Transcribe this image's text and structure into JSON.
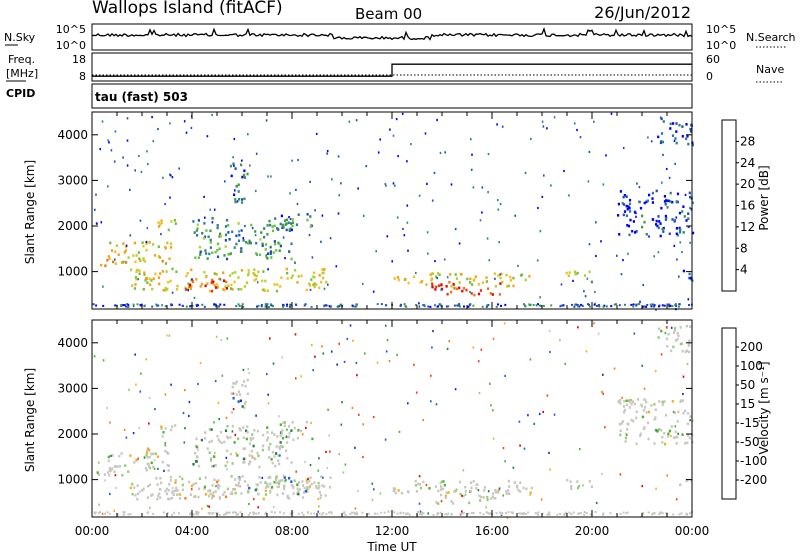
{
  "header": {
    "station": "Wallops Island (fitACF)",
    "beam": "Beam 00",
    "date": "26/Jun/2012"
  },
  "panels": {
    "noise": {
      "left_label": "N.Sky",
      "left_ticks": [
        "10^5",
        "10^0"
      ],
      "right_ticks": [
        "10^5",
        "10^0"
      ],
      "right_label": "N.Search"
    },
    "freq": {
      "label_top": "Freq.",
      "label_unit": "[MHz]",
      "cpid_label": "CPID",
      "left_ticks": [
        "18",
        "8"
      ],
      "right_ticks": [
        "60",
        "0"
      ],
      "right_label": "Nave",
      "cpid_text": "tau (fast) 503"
    }
  },
  "chart_data": [
    {
      "type": "heatmap",
      "name": "power",
      "ylabel": "Slant Range [km]",
      "colorbar_label": "Power [dB]",
      "colorbar_ticks": [
        "28",
        "24",
        "20",
        "16",
        "12",
        "8",
        "4"
      ],
      "colorbar_colors": [
        "#0000ff",
        "#1f4fb0",
        "#2e7f8c",
        "#3a9a4a",
        "#6cc23c",
        "#b0d030",
        "#f0c020",
        "#f8a010",
        "#f57010",
        "#ee3010",
        "#e60000"
      ],
      "yticks": [
        1000,
        2000,
        3000,
        4000
      ],
      "ylim": [
        180,
        4500
      ],
      "xlim_hours": [
        0,
        24
      ],
      "regions": [
        {
          "t0": 0.1,
          "t1": 1.2,
          "r0": 1100,
          "r1": 1300,
          "level": 0.65
        },
        {
          "t0": 0.6,
          "t1": 3.2,
          "r0": 1200,
          "r1": 1700,
          "level": 0.6
        },
        {
          "t0": 2.6,
          "t1": 3.4,
          "r0": 1900,
          "r1": 2250,
          "level": 0.55
        },
        {
          "t0": 1.5,
          "t1": 9.5,
          "r0": 600,
          "r1": 1100,
          "level": 0.55
        },
        {
          "t0": 3.5,
          "t1": 5.5,
          "r0": 600,
          "r1": 850,
          "level": 0.85
        },
        {
          "t0": 4.0,
          "t1": 8.0,
          "r0": 1300,
          "r1": 2200,
          "level": 0.3
        },
        {
          "t0": 5.5,
          "t1": 6.2,
          "r0": 2500,
          "r1": 3400,
          "level": 0.2
        },
        {
          "t0": 7.5,
          "t1": 8.8,
          "r0": 1900,
          "r1": 2300,
          "level": 0.25
        },
        {
          "t0": 12.0,
          "t1": 17.6,
          "r0": 700,
          "r1": 1000,
          "level": 0.55
        },
        {
          "t0": 13.5,
          "t1": 16.3,
          "r0": 500,
          "r1": 800,
          "level": 0.9
        },
        {
          "t0": 18.8,
          "t1": 20.0,
          "r0": 800,
          "r1": 1050,
          "level": 0.45
        },
        {
          "t0": 21.0,
          "t1": 24.0,
          "r0": 1800,
          "r1": 2800,
          "level": 0.12
        },
        {
          "t0": 22.6,
          "t1": 24.0,
          "r0": 3800,
          "r1": 4400,
          "level": 0.1
        },
        {
          "t0": 23.4,
          "t1": 24.0,
          "r0": 800,
          "r1": 1050,
          "level": 0.15
        }
      ]
    },
    {
      "type": "heatmap",
      "name": "velocity",
      "ylabel": "Slant Range [km]",
      "xlabel": "Time UT",
      "colorbar_label": "Velocity [m s⁻¹]",
      "colorbar_ticks": [
        "200",
        "100",
        "50",
        "15",
        "-15",
        "-50",
        "-100",
        "-200"
      ],
      "colorbar_colors": [
        "#1030c0",
        "#2060d0",
        "#208040",
        "#50b030",
        "#90d070",
        "#c8c8c0",
        "#f0b020",
        "#f88010",
        "#f04010",
        "#e00000"
      ],
      "yticks": [
        1000,
        2000,
        3000,
        4000
      ],
      "ylim": [
        180,
        4500
      ],
      "xticks": [
        "00:00",
        "04:00",
        "08:00",
        "12:00",
        "16:00",
        "20:00",
        "00:00"
      ],
      "xlim_hours": [
        0,
        24
      ],
      "regions": [
        {
          "t0": 0.1,
          "t1": 1.2,
          "r0": 1100,
          "r1": 1300,
          "level": 0.5
        },
        {
          "t0": 0.6,
          "t1": 3.2,
          "r0": 1200,
          "r1": 1700,
          "level": 0.5
        },
        {
          "t0": 2.6,
          "t1": 3.4,
          "r0": 1900,
          "r1": 2250,
          "level": 0.5
        },
        {
          "t0": 1.5,
          "t1": 9.5,
          "r0": 600,
          "r1": 1100,
          "level": 0.55
        },
        {
          "t0": 2.5,
          "t1": 5.5,
          "r0": 600,
          "r1": 850,
          "level": 0.65
        },
        {
          "t0": 5.5,
          "t1": 9.0,
          "r0": 700,
          "r1": 1100,
          "level": 0.3
        },
        {
          "t0": 4.0,
          "t1": 8.0,
          "r0": 1300,
          "r1": 2200,
          "level": 0.4
        },
        {
          "t0": 5.5,
          "t1": 6.2,
          "r0": 2500,
          "r1": 3400,
          "level": 0.1
        },
        {
          "t0": 7.5,
          "t1": 8.8,
          "r0": 1900,
          "r1": 2300,
          "level": 0.45
        },
        {
          "t0": 12.0,
          "t1": 17.6,
          "r0": 700,
          "r1": 1000,
          "level": 0.5
        },
        {
          "t0": 13.5,
          "t1": 16.3,
          "r0": 500,
          "r1": 800,
          "level": 0.5
        },
        {
          "t0": 18.8,
          "t1": 20.0,
          "r0": 800,
          "r1": 1050,
          "level": 0.5
        },
        {
          "t0": 21.0,
          "t1": 24.0,
          "r0": 1800,
          "r1": 2800,
          "level": 0.5
        },
        {
          "t0": 22.6,
          "t1": 24.0,
          "r0": 3800,
          "r1": 4400,
          "level": 0.5
        },
        {
          "t0": 23.4,
          "t1": 24.0,
          "r0": 800,
          "r1": 1050,
          "level": 0.5
        }
      ]
    }
  ],
  "frequency_series": {
    "x_hours": [
      0,
      12,
      12,
      24
    ],
    "values_mhz": [
      10,
      10,
      15,
      15
    ]
  }
}
